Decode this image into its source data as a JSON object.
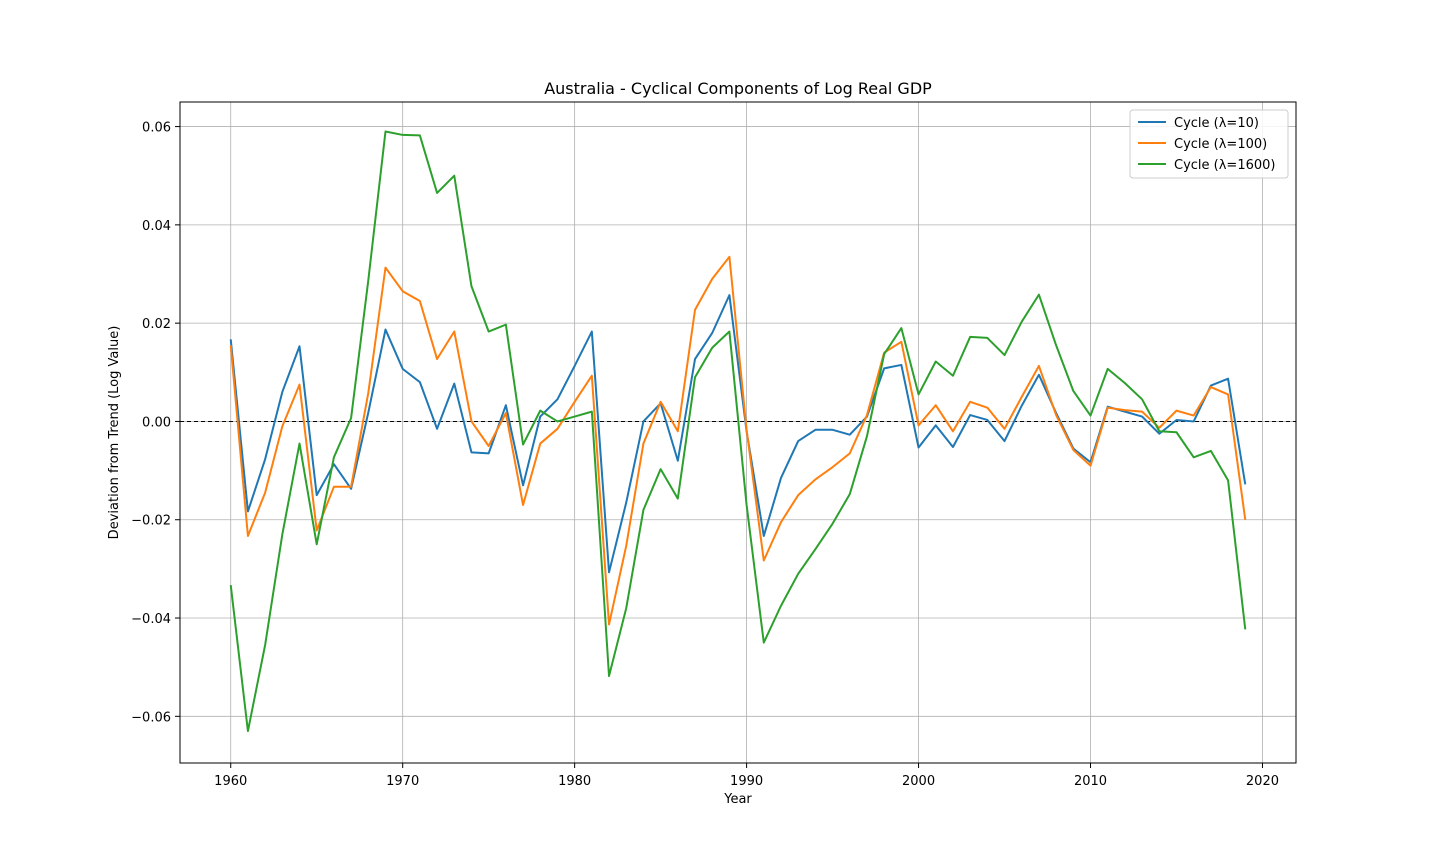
{
  "chart_data": {
    "type": "line",
    "title": "Australia - Cyclical Components of Log Real GDP",
    "xlabel": "Year",
    "ylabel": "Deviation from Trend (Log Value)",
    "xlim": [
      1957.05,
      2021.95
    ],
    "ylim": [
      -0.0695,
      0.065
    ],
    "xticks": [
      1960,
      1970,
      1980,
      1990,
      2000,
      2010,
      2020
    ],
    "xtick_labels": [
      "1960",
      "1970",
      "1980",
      "1990",
      "2000",
      "2010",
      "2020"
    ],
    "yticks": [
      -0.06,
      -0.04,
      -0.02,
      0.0,
      0.02,
      0.04,
      0.06
    ],
    "ytick_labels": [
      "−0.06",
      "−0.04",
      "−0.02",
      "0.00",
      "0.02",
      "0.04",
      "0.06"
    ],
    "grid": true,
    "legend_position": "top-right",
    "reference_line": {
      "y": 0.0,
      "style": "dashed",
      "color": "#000000"
    },
    "x": [
      1960,
      1961,
      1962,
      1963,
      1964,
      1965,
      1966,
      1967,
      1968,
      1969,
      1970,
      1971,
      1972,
      1973,
      1974,
      1975,
      1976,
      1977,
      1978,
      1979,
      1980,
      1981,
      1982,
      1983,
      1984,
      1985,
      1986,
      1987,
      1988,
      1989,
      1990,
      1991,
      1992,
      1993,
      1994,
      1995,
      1996,
      1997,
      1998,
      1999,
      2000,
      2001,
      2002,
      2003,
      2004,
      2005,
      2006,
      2007,
      2008,
      2009,
      2010,
      2011,
      2012,
      2013,
      2014,
      2015,
      2016,
      2017,
      2018,
      2019
    ],
    "series": [
      {
        "name": "Cycle (λ=10)",
        "color": "#1f77b4",
        "values": [
          0.0167,
          -0.0183,
          -0.0077,
          0.006,
          0.0153,
          -0.015,
          -0.0087,
          -0.0137,
          0.0018,
          0.0187,
          0.0107,
          0.008,
          -0.0015,
          0.0077,
          -0.0063,
          -0.0065,
          0.0033,
          -0.013,
          0.001,
          0.0045,
          0.0113,
          0.0183,
          -0.0307,
          -0.0165,
          0.0,
          0.0037,
          -0.008,
          0.0127,
          0.018,
          0.0257,
          -0.002,
          -0.0233,
          -0.0115,
          -0.004,
          -0.0017,
          -0.0017,
          -0.0027,
          0.001,
          0.0108,
          0.0115,
          -0.0053,
          -0.0008,
          -0.0052,
          0.0013,
          0.0003,
          -0.004,
          0.0032,
          0.0095,
          0.0017,
          -0.0055,
          -0.0083,
          0.003,
          0.002,
          0.001,
          -0.0025,
          0.0003,
          0.0,
          0.0073,
          0.0087,
          -0.0128
        ]
      },
      {
        "name": "Cycle (λ=100)",
        "color": "#ff7f0e",
        "values": [
          0.0155,
          -0.0233,
          -0.0145,
          -0.001,
          0.0075,
          -0.0222,
          -0.0133,
          -0.0133,
          0.0058,
          0.0313,
          0.0265,
          0.0245,
          0.0127,
          0.0183,
          0.0,
          -0.005,
          0.0017,
          -0.017,
          -0.0045,
          -0.0015,
          0.004,
          0.0093,
          -0.0413,
          -0.0253,
          -0.0045,
          0.004,
          -0.002,
          0.0227,
          0.029,
          0.0335,
          -0.0017,
          -0.0283,
          -0.0205,
          -0.015,
          -0.0118,
          -0.0093,
          -0.0065,
          0.0013,
          0.014,
          0.0162,
          -0.0008,
          0.0033,
          -0.002,
          0.004,
          0.0028,
          -0.0015,
          0.005,
          0.0113,
          0.0013,
          -0.0058,
          -0.009,
          0.0028,
          0.0023,
          0.002,
          -0.0013,
          0.0022,
          0.0012,
          0.007,
          0.0055,
          -0.02
        ]
      },
      {
        "name": "Cycle (λ=1600)",
        "color": "#2ca02c",
        "values": [
          -0.0333,
          -0.063,
          -0.0455,
          -0.023,
          -0.0045,
          -0.025,
          -0.0073,
          0.0007,
          0.0287,
          0.059,
          0.0583,
          0.0582,
          0.0465,
          0.05,
          0.0275,
          0.0183,
          0.0197,
          -0.0047,
          0.0022,
          0.0,
          0.001,
          0.002,
          -0.0518,
          -0.038,
          -0.018,
          -0.0097,
          -0.0157,
          0.009,
          0.015,
          0.0183,
          -0.017,
          -0.045,
          -0.0375,
          -0.031,
          -0.026,
          -0.0208,
          -0.0148,
          -0.003,
          0.0137,
          0.019,
          0.0055,
          0.0122,
          0.0093,
          0.0172,
          0.017,
          0.0135,
          0.0203,
          0.0258,
          0.0155,
          0.0062,
          0.0012,
          0.0107,
          0.0078,
          0.0045,
          -0.002,
          -0.0022,
          -0.0073,
          -0.006,
          -0.012,
          -0.0423
        ]
      }
    ]
  }
}
